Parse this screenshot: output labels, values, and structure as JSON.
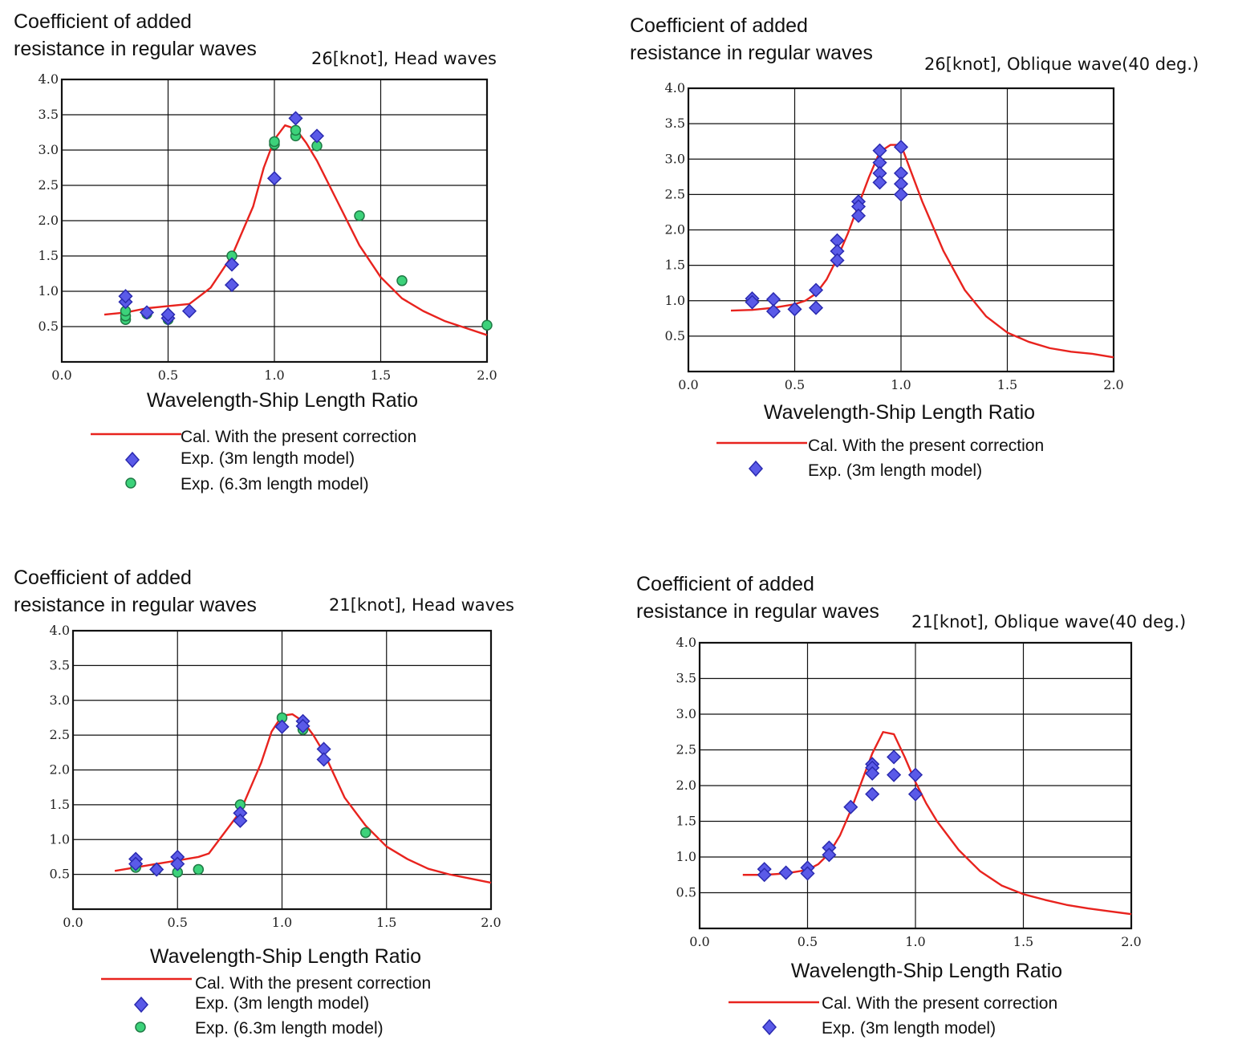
{
  "chart_data": [
    {
      "type": "line",
      "ylabel": "Coefficient of added resistance in regular waves",
      "ylabel_lines": [
        "Coefficient of added",
        "resistance in regular waves"
      ],
      "subtitle": "26[knot], Head waves",
      "xlabel": "Wavelength-Ship Length Ratio",
      "xlim": [
        0,
        2
      ],
      "ylim": [
        0,
        4
      ],
      "xticks": [
        "0.0",
        "0.5",
        "1.0",
        "1.5",
        "2.0"
      ],
      "yticks": [
        "0.5",
        "1.0",
        "1.5",
        "2.0",
        "2.5",
        "3.0",
        "3.5",
        "4.0"
      ],
      "grid": true,
      "colors": {
        "line": "#e8231e",
        "diamond": "#5a5ae8",
        "circle": "#3cd27a"
      },
      "series": [
        {
          "name": "Cal. With the present correction",
          "kind": "line",
          "x": [
            0.2,
            0.3,
            0.4,
            0.5,
            0.6,
            0.7,
            0.8,
            0.9,
            0.95,
            1.0,
            1.05,
            1.1,
            1.15,
            1.2,
            1.3,
            1.4,
            1.5,
            1.6,
            1.7,
            1.8,
            1.9,
            2.0
          ],
          "y": [
            0.67,
            0.7,
            0.76,
            0.79,
            0.82,
            1.05,
            1.5,
            2.2,
            2.75,
            3.15,
            3.35,
            3.3,
            3.1,
            2.85,
            2.25,
            1.65,
            1.2,
            0.9,
            0.72,
            0.58,
            0.48,
            0.38
          ]
        },
        {
          "name": "Exp. (3m length model)",
          "kind": "diamond",
          "x": [
            0.3,
            0.3,
            0.4,
            0.5,
            0.5,
            0.6,
            0.8,
            0.8,
            1.0,
            1.1,
            1.2
          ],
          "y": [
            0.85,
            0.93,
            0.7,
            0.62,
            0.67,
            0.72,
            1.38,
            1.09,
            2.6,
            3.45,
            3.2
          ]
        },
        {
          "name": "Exp. (6.3m length model)",
          "kind": "circle",
          "x": [
            0.3,
            0.3,
            0.3,
            0.4,
            0.5,
            0.8,
            1.0,
            1.0,
            1.1,
            1.1,
            1.2,
            1.4,
            1.6,
            2.0
          ],
          "y": [
            0.6,
            0.65,
            0.72,
            0.68,
            0.6,
            1.5,
            3.08,
            3.12,
            3.2,
            3.28,
            3.06,
            2.07,
            1.15,
            0.52
          ]
        }
      ]
    },
    {
      "type": "line",
      "ylabel": "Coefficient of added resistance in regular waves",
      "ylabel_lines": [
        "Coefficient of added",
        "resistance in regular waves"
      ],
      "subtitle": "26[knot], Oblique wave(40 deg.)",
      "xlabel": "Wavelength-Ship Length Ratio",
      "xlim": [
        0,
        2
      ],
      "ylim": [
        0,
        4
      ],
      "xticks": [
        "0.0",
        "0.5",
        "1.0",
        "1.5",
        "2.0"
      ],
      "yticks": [
        "0.5",
        "1.0",
        "1.5",
        "2.0",
        "2.5",
        "3.0",
        "3.5",
        "4.0"
      ],
      "grid": true,
      "colors": {
        "line": "#e8231e",
        "diamond": "#5a5ae8",
        "circle": "#3cd27a"
      },
      "series": [
        {
          "name": "Cal. With the present correction",
          "kind": "line",
          "x": [
            0.2,
            0.3,
            0.4,
            0.5,
            0.55,
            0.6,
            0.65,
            0.7,
            0.75,
            0.8,
            0.85,
            0.9,
            0.95,
            1.0,
            1.05,
            1.1,
            1.2,
            1.3,
            1.4,
            1.5,
            1.6,
            1.7,
            1.8,
            1.9,
            2.0
          ],
          "y": [
            0.86,
            0.87,
            0.9,
            0.95,
            1.0,
            1.1,
            1.3,
            1.6,
            1.95,
            2.35,
            2.75,
            3.1,
            3.2,
            3.2,
            2.8,
            2.4,
            1.7,
            1.15,
            0.78,
            0.55,
            0.42,
            0.33,
            0.28,
            0.25,
            0.2
          ]
        },
        {
          "name": "Exp. (3m length model)",
          "kind": "diamond",
          "x": [
            0.3,
            0.3,
            0.4,
            0.4,
            0.5,
            0.6,
            0.6,
            0.7,
            0.7,
            0.7,
            0.8,
            0.8,
            0.8,
            0.9,
            0.9,
            0.9,
            0.9,
            1.0,
            1.0,
            1.0,
            1.0
          ],
          "y": [
            1.03,
            0.98,
            1.02,
            0.85,
            0.88,
            1.15,
            0.9,
            1.85,
            1.7,
            1.57,
            2.4,
            2.33,
            2.2,
            3.12,
            2.95,
            2.8,
            2.67,
            3.17,
            2.8,
            2.65,
            2.5
          ]
        }
      ]
    },
    {
      "type": "line",
      "ylabel": "Coefficient of added resistance in regular waves",
      "ylabel_lines": [
        "Coefficient of added",
        "resistance in regular waves"
      ],
      "subtitle": "21[knot], Head waves",
      "xlabel": "Wavelength-Ship Length Ratio",
      "xlim": [
        0,
        2
      ],
      "ylim": [
        0,
        4
      ],
      "xticks": [
        "0.0",
        "0.5",
        "1.0",
        "1.5",
        "2.0"
      ],
      "yticks": [
        "0.5",
        "1.0",
        "1.5",
        "2.0",
        "2.5",
        "3.0",
        "3.5",
        "4.0"
      ],
      "grid": true,
      "colors": {
        "line": "#e8231e",
        "diamond": "#5a5ae8",
        "circle": "#3cd27a"
      },
      "series": [
        {
          "name": "Cal. With the present correction",
          "kind": "line",
          "x": [
            0.2,
            0.3,
            0.4,
            0.5,
            0.6,
            0.65,
            0.7,
            0.8,
            0.9,
            0.95,
            1.0,
            1.05,
            1.1,
            1.15,
            1.2,
            1.3,
            1.4,
            1.5,
            1.6,
            1.7,
            1.8,
            1.9,
            2.0
          ],
          "y": [
            0.55,
            0.6,
            0.65,
            0.7,
            0.75,
            0.8,
            1.0,
            1.4,
            2.1,
            2.55,
            2.78,
            2.8,
            2.7,
            2.5,
            2.25,
            1.6,
            1.2,
            0.9,
            0.72,
            0.58,
            0.5,
            0.44,
            0.38
          ]
        },
        {
          "name": "Exp. (3m length model)",
          "kind": "diamond",
          "x": [
            0.3,
            0.3,
            0.4,
            0.5,
            0.5,
            0.8,
            0.8,
            1.0,
            1.1,
            1.1,
            1.2,
            1.2
          ],
          "y": [
            0.72,
            0.65,
            0.57,
            0.75,
            0.65,
            1.38,
            1.27,
            2.62,
            2.7,
            2.63,
            2.3,
            2.15
          ]
        },
        {
          "name": "Exp. (6.3m length model)",
          "kind": "circle",
          "x": [
            0.3,
            0.4,
            0.5,
            0.6,
            0.8,
            1.0,
            1.1,
            1.4
          ],
          "y": [
            0.6,
            0.57,
            0.53,
            0.57,
            1.5,
            2.75,
            2.58,
            1.1
          ]
        }
      ]
    },
    {
      "type": "line",
      "ylabel": "Coefficient of added resistance in regular waves",
      "ylabel_lines": [
        "Coefficient of added",
        "resistance in regular waves"
      ],
      "subtitle": "21[knot], Oblique wave(40 deg.)",
      "xlabel": "Wavelength-Ship Length Ratio",
      "xlim": [
        0,
        2
      ],
      "ylim": [
        0,
        4
      ],
      "xticks": [
        "0.0",
        "0.5",
        "1.0",
        "1.5",
        "2.0"
      ],
      "yticks": [
        "0.5",
        "1.0",
        "1.5",
        "2.0",
        "2.5",
        "3.0",
        "3.5",
        "4.0"
      ],
      "grid": true,
      "colors": {
        "line": "#e8231e",
        "diamond": "#5a5ae8",
        "circle": "#3cd27a"
      },
      "series": [
        {
          "name": "Cal. With the present correction",
          "kind": "line",
          "x": [
            0.2,
            0.3,
            0.4,
            0.5,
            0.55,
            0.6,
            0.65,
            0.7,
            0.75,
            0.8,
            0.85,
            0.9,
            0.95,
            1.0,
            1.05,
            1.1,
            1.2,
            1.3,
            1.4,
            1.5,
            1.6,
            1.7,
            1.8,
            1.9,
            2.0
          ],
          "y": [
            0.75,
            0.75,
            0.77,
            0.82,
            0.9,
            1.05,
            1.3,
            1.65,
            2.05,
            2.45,
            2.75,
            2.72,
            2.4,
            2.05,
            1.75,
            1.5,
            1.1,
            0.8,
            0.6,
            0.48,
            0.4,
            0.33,
            0.28,
            0.24,
            0.2
          ]
        },
        {
          "name": "Exp. (3m length model)",
          "kind": "diamond",
          "x": [
            0.3,
            0.3,
            0.4,
            0.5,
            0.5,
            0.6,
            0.6,
            0.7,
            0.8,
            0.8,
            0.8,
            0.8,
            0.9,
            0.9,
            1.0,
            1.0
          ],
          "y": [
            0.83,
            0.75,
            0.78,
            0.85,
            0.77,
            1.13,
            1.03,
            1.7,
            2.3,
            2.25,
            2.17,
            1.88,
            2.4,
            2.15,
            2.15,
            1.88
          ]
        }
      ]
    }
  ]
}
